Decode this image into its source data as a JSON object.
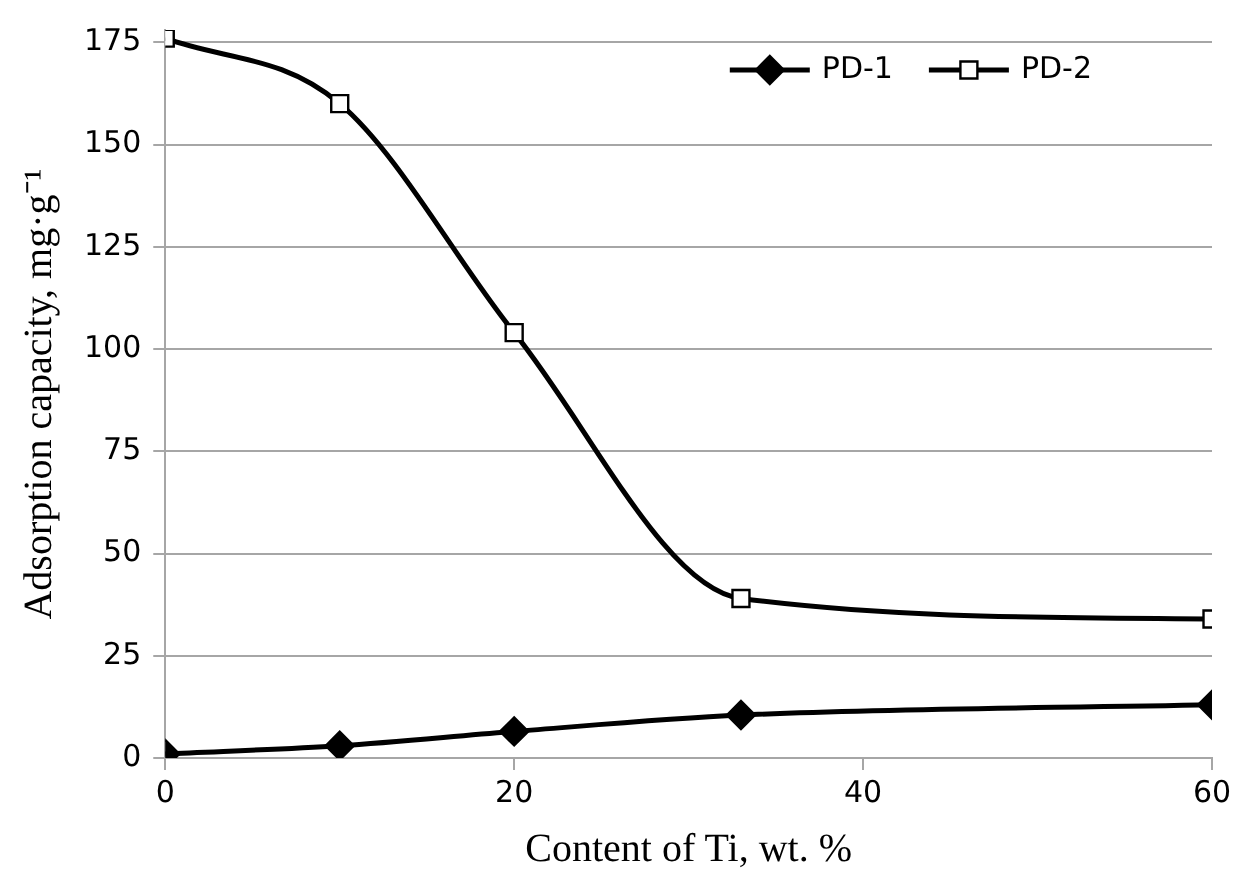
{
  "chart_data": {
    "type": "line",
    "xlabel": "Content of Ti, wt. %",
    "ylabel": "Adsorption capacity, mg·g⁻¹",
    "x": [
      0,
      10,
      20,
      33,
      60
    ],
    "series": [
      {
        "name": "PD-1",
        "color": "#000000",
        "marker": "diamond",
        "values": [
          1,
          3,
          6.5,
          10.5,
          13
        ]
      },
      {
        "name": "PD-2",
        "color": "#000000",
        "marker": "square",
        "values": [
          176,
          160,
          104,
          39,
          34
        ]
      }
    ],
    "xlim": [
      0,
      60
    ],
    "xticks": [
      0,
      20,
      40,
      60
    ],
    "ylim": [
      0,
      178
    ],
    "yticks": [
      0,
      25,
      50,
      75,
      100,
      125,
      150,
      175
    ],
    "grid": "y",
    "legend": "top right",
    "line_style": "solid"
  }
}
